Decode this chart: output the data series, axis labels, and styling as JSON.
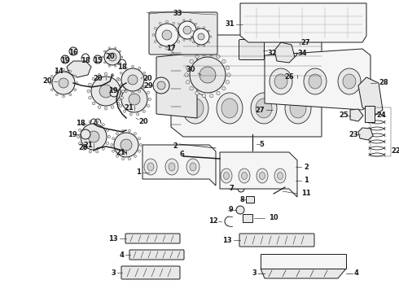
{
  "bg_color": "#ffffff",
  "fig_width": 4.9,
  "fig_height": 3.6,
  "dpi": 100,
  "lc": "#1a1a1a",
  "lw": 0.7
}
